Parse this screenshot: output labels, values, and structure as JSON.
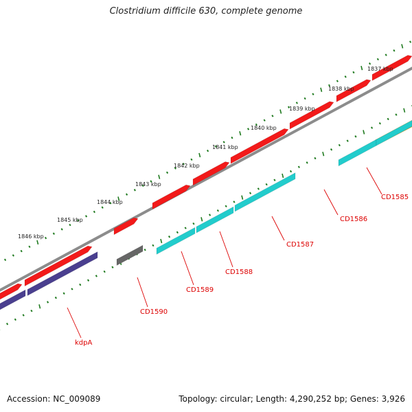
{
  "title": "Clostridium difficile 630, complete genome",
  "footer": {
    "accession": "Accession: NC_009089",
    "summary": "Topology: circular; Length: 4,290,252 bp; Genes: 3,926"
  },
  "colors": {
    "backbone": "#8c8c8c",
    "cds_forward": "#f21a1a",
    "gene_label": "#dd0000",
    "tick": "#1f7a1f",
    "cyan": "#22cccc",
    "indigo": "#4a3f8f",
    "gray": "#666666",
    "orange": "#f59a1a"
  },
  "kbp_labels": [
    "1837 kbp",
    "1838 kbp",
    "1839 kbp",
    "1840 kbp",
    "1841 kbp",
    "1842 kbp",
    "1843 kbp",
    "1844 kbp",
    "1845 kbp",
    "1846 kbp"
  ],
  "genes": [
    {
      "label": "CD1585"
    },
    {
      "label": "CD1586"
    },
    {
      "label": "CD1587"
    },
    {
      "label": "CD1588"
    },
    {
      "label": "CD1589"
    },
    {
      "label": "CD1590"
    },
    {
      "label": "kdpA"
    }
  ]
}
